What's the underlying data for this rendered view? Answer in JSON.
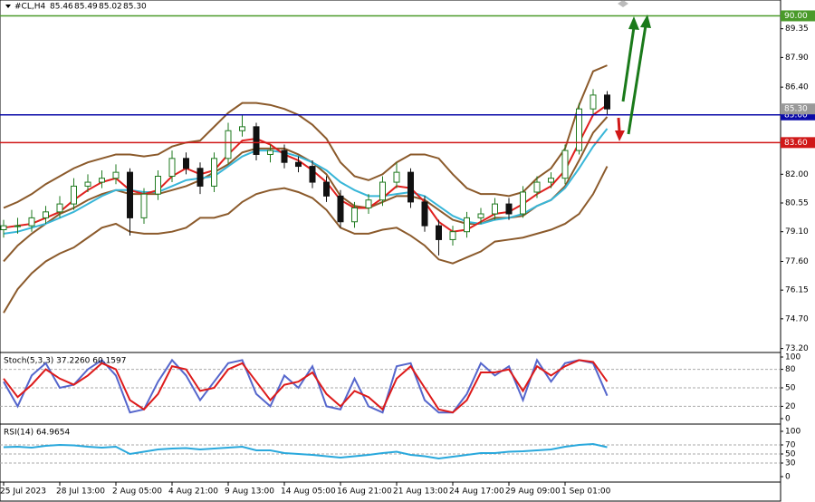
{
  "chart_data": {
    "type": "candlestick",
    "title": "#CL,H4",
    "header_values": [
      "85.46",
      "85.49",
      "85.02",
      "85.30"
    ],
    "categories": [
      "25 Jul 2023",
      null,
      null,
      null,
      "28 Jul 13:00",
      null,
      null,
      null,
      "2 Aug 05:00",
      null,
      null,
      null,
      "4 Aug 21:00",
      null,
      null,
      null,
      "9 Aug 13:00",
      null,
      null,
      null,
      "14 Aug 05:00",
      null,
      null,
      null,
      "16 Aug 21:00",
      null,
      null,
      null,
      "21 Aug 13:00",
      null,
      null,
      null,
      "24 Aug 17:00",
      null,
      null,
      null,
      "29 Aug 09:00",
      null,
      null,
      null,
      "1 Sep 01:00",
      null,
      null,
      null
    ],
    "open": [
      79.2,
      79.4,
      79.4,
      79.8,
      80.1,
      80.5,
      81.4,
      81.6,
      81.8,
      82.1,
      79.8,
      81.0,
      81.9,
      82.8,
      82.3,
      81.4,
      82.8,
      84.2,
      84.4,
      83.0,
      83.2,
      82.6,
      82.4,
      81.6,
      80.9,
      79.6,
      80.3,
      80.7,
      81.6,
      82.1,
      80.6,
      79.4,
      78.7,
      79.1,
      79.8,
      80.0,
      80.5,
      80.0,
      81.1,
      81.6,
      81.8,
      83.2,
      85.3,
      86.0
    ],
    "high": [
      79.7,
      79.8,
      80.2,
      80.4,
      80.9,
      81.8,
      82.0,
      82.2,
      82.5,
      82.3,
      81.3,
      82.2,
      83.2,
      83.1,
      82.6,
      83.1,
      84.6,
      85.0,
      84.6,
      83.5,
      83.5,
      82.9,
      82.7,
      81.9,
      81.2,
      80.6,
      81.0,
      81.9,
      82.6,
      82.3,
      80.9,
      79.7,
      79.4,
      80.1,
      80.3,
      80.8,
      80.8,
      81.4,
      81.9,
      82.1,
      83.5,
      85.6,
      86.3,
      86.2
    ],
    "low": [
      78.8,
      79.0,
      79.1,
      79.5,
      79.8,
      80.2,
      81.1,
      81.3,
      81.5,
      78.9,
      79.5,
      80.7,
      81.6,
      82.0,
      81.0,
      81.1,
      82.5,
      83.9,
      82.7,
      82.6,
      82.3,
      82.1,
      81.3,
      80.6,
      79.3,
      79.3,
      80.0,
      80.4,
      81.3,
      80.3,
      79.1,
      77.9,
      78.4,
      78.8,
      79.5,
      79.7,
      79.7,
      79.8,
      80.8,
      81.3,
      81.5,
      83.0,
      85.0,
      85.0
    ],
    "close": [
      79.4,
      79.4,
      79.8,
      80.1,
      80.5,
      81.4,
      81.6,
      81.8,
      82.1,
      79.8,
      81.0,
      81.9,
      82.8,
      82.3,
      81.4,
      82.8,
      84.2,
      84.4,
      83.0,
      83.2,
      82.6,
      82.4,
      81.6,
      80.9,
      79.6,
      80.3,
      80.7,
      81.6,
      82.1,
      80.6,
      79.4,
      78.7,
      79.1,
      79.8,
      80.0,
      80.5,
      80.0,
      81.1,
      81.6,
      81.8,
      83.2,
      85.3,
      86.0,
      85.3
    ],
    "up_color": "#1f7a1f",
    "down_color": "#111111",
    "overlays": [
      {
        "color": "#8b5a2b",
        "values": [
          80.3,
          80.6,
          81.0,
          81.5,
          81.9,
          82.3,
          82.6,
          82.8,
          83.0,
          83.0,
          82.9,
          83.0,
          83.4,
          83.6,
          83.7,
          84.4,
          85.1,
          85.6,
          85.6,
          85.5,
          85.3,
          85.0,
          84.5,
          83.8,
          82.6,
          81.9,
          81.7,
          82.0,
          82.6,
          83.0,
          83.0,
          82.8,
          82.0,
          81.3,
          81.0,
          81.0,
          80.9,
          81.1,
          81.8,
          82.3,
          83.3,
          85.5,
          87.2,
          87.5
        ]
      },
      {
        "color": "#8b5a2b",
        "values": [
          77.6,
          78.4,
          79.0,
          79.5,
          80.0,
          80.3,
          80.7,
          81.0,
          81.2,
          81.0,
          81.0,
          81.0,
          81.2,
          81.4,
          81.7,
          82.1,
          82.5,
          83.1,
          83.3,
          83.3,
          83.3,
          83.0,
          82.6,
          82.0,
          80.9,
          80.4,
          80.3,
          80.6,
          80.9,
          80.9,
          80.7,
          80.2,
          79.7,
          79.5,
          79.5,
          79.8,
          79.8,
          79.9,
          80.4,
          80.7,
          81.4,
          82.7,
          84.1,
          84.9
        ]
      },
      {
        "color": "#8b5a2b",
        "values": [
          75.0,
          76.2,
          77.0,
          77.6,
          78.0,
          78.3,
          78.8,
          79.3,
          79.5,
          79.1,
          79.0,
          79.0,
          79.1,
          79.3,
          79.8,
          79.8,
          80.0,
          80.6,
          81.0,
          81.2,
          81.3,
          81.1,
          80.8,
          80.2,
          79.3,
          79.0,
          79.0,
          79.2,
          79.3,
          78.9,
          78.4,
          77.7,
          77.5,
          77.8,
          78.1,
          78.6,
          78.7,
          78.8,
          79.0,
          79.2,
          79.5,
          80.0,
          81.0,
          82.4
        ]
      },
      {
        "color": "#38b6d8",
        "values": [
          79.0,
          79.1,
          79.3,
          79.5,
          79.8,
          80.1,
          80.5,
          80.9,
          81.2,
          81.2,
          81.1,
          81.1,
          81.4,
          81.7,
          81.8,
          81.9,
          82.4,
          82.9,
          83.2,
          83.2,
          83.1,
          82.9,
          82.6,
          82.2,
          81.6,
          81.2,
          80.9,
          80.9,
          81.0,
          81.1,
          80.9,
          80.4,
          79.9,
          79.6,
          79.5,
          79.7,
          79.8,
          80.0,
          80.4,
          80.7,
          81.3,
          82.3,
          83.4,
          84.3
        ]
      },
      {
        "color": "#e0201e",
        "values": [
          79.3,
          79.4,
          79.5,
          79.8,
          80.1,
          80.7,
          81.2,
          81.6,
          81.8,
          81.2,
          81.0,
          81.2,
          81.9,
          82.3,
          82.0,
          82.2,
          83.0,
          83.7,
          83.8,
          83.5,
          83.0,
          82.7,
          82.2,
          81.6,
          80.7,
          80.3,
          80.3,
          80.8,
          81.4,
          81.3,
          80.6,
          79.6,
          79.1,
          79.2,
          79.6,
          80.0,
          80.1,
          80.5,
          81.0,
          81.4,
          82.2,
          83.6,
          85.0,
          85.5
        ]
      }
    ],
    "ylim": [
      73.0,
      90.8
    ],
    "yticks": [
      {
        "value": 89.35,
        "label": "89.35"
      },
      {
        "value": 87.9,
        "label": "87.90"
      },
      {
        "value": 86.4,
        "label": "86.40"
      },
      {
        "value": 82.0,
        "label": "82.00"
      },
      {
        "value": 80.55,
        "label": "80.55"
      },
      {
        "value": 79.1,
        "label": "79.10"
      },
      {
        "value": 77.6,
        "label": "77.60"
      },
      {
        "value": 76.15,
        "label": "76.15"
      },
      {
        "value": 74.7,
        "label": "74.70"
      },
      {
        "value": 73.2,
        "label": "73.20"
      }
    ],
    "last_price": {
      "value": 85.3,
      "label": "85.30"
    },
    "levels": [
      {
        "value": 90.0,
        "label": "90.00",
        "color": "#4a9a2a"
      },
      {
        "value": 85.0,
        "label": "85.00",
        "color": "#0a0aa8"
      },
      {
        "value": 83.6,
        "label": "83.60",
        "color": "#d01818"
      }
    ],
    "indicators": [
      {
        "title": "Stoch(5,3,3) 37.2260 60.1597",
        "ylim": [
          0,
          100
        ],
        "yticks": [
          100,
          80,
          50,
          20,
          0
        ],
        "levels": [
          80,
          50,
          20
        ],
        "series": [
          {
            "color": "#5566cc",
            "values": [
              60,
              20,
              70,
              90,
              50,
              55,
              80,
              95,
              70,
              10,
              15,
              60,
              95,
              70,
              30,
              60,
              90,
              95,
              40,
              20,
              70,
              50,
              85,
              20,
              15,
              65,
              20,
              10,
              85,
              90,
              30,
              10,
              10,
              40,
              90,
              70,
              85,
              30,
              95,
              60,
              90,
              95,
              90,
              37.226
            ]
          },
          {
            "color": "#dd1a1a",
            "values": [
              65,
              35,
              55,
              80,
              65,
              55,
              70,
              90,
              80,
              30,
              15,
              40,
              85,
              80,
              45,
              50,
              80,
              90,
              60,
              30,
              55,
              60,
              75,
              40,
              20,
              45,
              35,
              15,
              65,
              85,
              50,
              15,
              10,
              30,
              75,
              75,
              80,
              45,
              85,
              70,
              85,
              95,
              92,
              60.1597
            ]
          }
        ]
      },
      {
        "title": "RSI(14) 64.9654",
        "ylim": [
          0,
          100
        ],
        "yticks": [
          100,
          70,
          50,
          30,
          0
        ],
        "levels": [
          70,
          50,
          30
        ],
        "series": [
          {
            "color": "#29a8dc",
            "values": [
              65,
              66,
              64,
              68,
              70,
              69,
              66,
              64,
              66,
              50,
              55,
              60,
              62,
              63,
              60,
              62,
              64,
              66,
              58,
              58,
              52,
              50,
              48,
              45,
              42,
              45,
              48,
              52,
              55,
              48,
              45,
              40,
              44,
              48,
              52,
              52,
              55,
              56,
              58,
              60,
              66,
              70,
              72,
              64.9654
            ]
          }
        ]
      }
    ]
  }
}
